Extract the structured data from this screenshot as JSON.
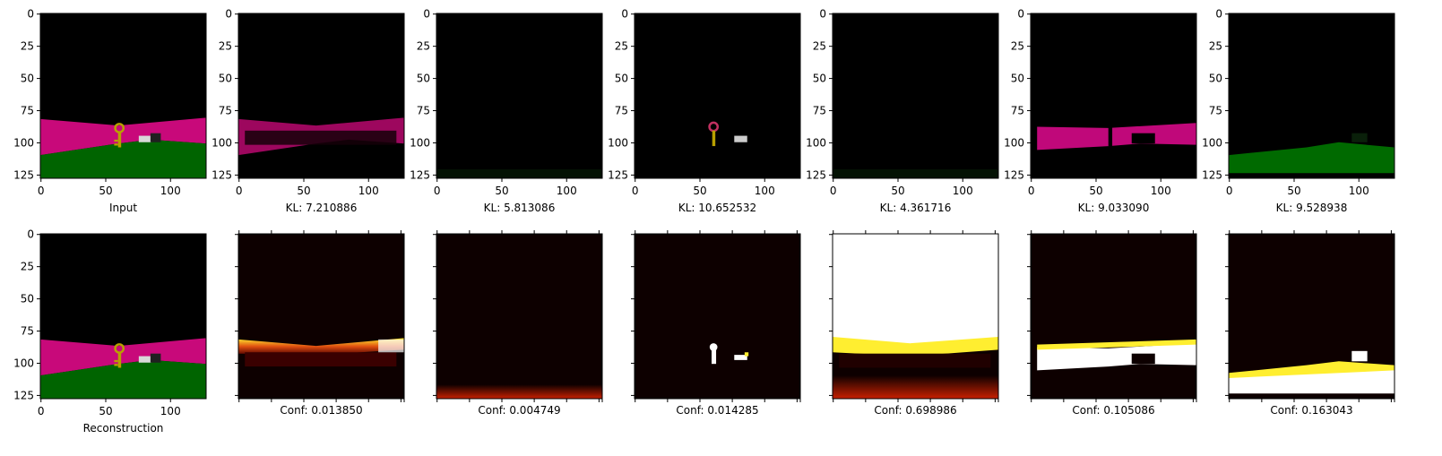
{
  "chart_data": {
    "type": "image_grid",
    "image_size": [
      128,
      128
    ],
    "x_ticks": [
      0,
      50,
      100
    ],
    "y_ticks": [
      0,
      25,
      50,
      75,
      100,
      125
    ],
    "rows": [
      {
        "panels": [
          {
            "label": "Input",
            "content": "scene"
          },
          {
            "label": "KL: 7.210886",
            "content": "slot-pink-wall"
          },
          {
            "label": "KL: 5.813086",
            "content": "slot-empty"
          },
          {
            "label": "KL: 10.652532",
            "content": "slot-key-and-box"
          },
          {
            "label": "KL: 4.361716",
            "content": "slot-empty"
          },
          {
            "label": "KL: 9.033090",
            "content": "slot-pink-wall-2"
          },
          {
            "label": "KL: 9.528938",
            "content": "slot-green-floor"
          }
        ]
      },
      {
        "panels": [
          {
            "label": "Reconstruction",
            "content": "scene"
          },
          {
            "label": "Conf: 0.013850",
            "content": "heat-wall"
          },
          {
            "label": "Conf: 0.004749",
            "content": "heat-bottom"
          },
          {
            "label": "Conf: 0.014285",
            "content": "heat-key"
          },
          {
            "label": "Conf: 0.698986",
            "content": "heat-sky"
          },
          {
            "label": "Conf: 0.105086",
            "content": "heat-wall-2"
          },
          {
            "label": "Conf: 0.163043",
            "content": "heat-floor"
          }
        ]
      }
    ]
  },
  "colors": {
    "magenta": "#c8097a",
    "green": "#006400",
    "key": "#b8a000",
    "heat_dark": "#0d0000",
    "heat_red": "#c82000",
    "heat_yellow": "#ffee30",
    "heat_white": "#ffffff"
  }
}
